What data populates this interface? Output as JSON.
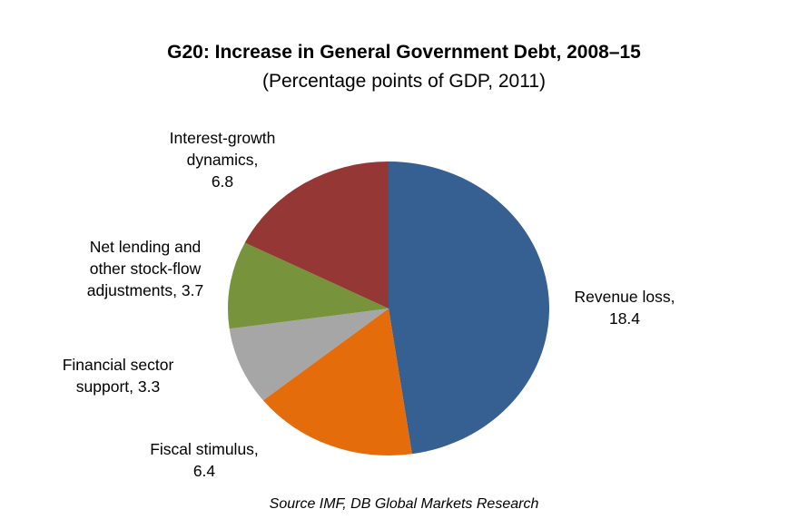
{
  "chart_data": {
    "type": "pie",
    "title": "G20: Increase in General Government Debt, 2008–15",
    "subtitle": "(Percentage points of GDP, 2011)",
    "source": "Source  IMF, DB Global Markets Research",
    "slices": [
      {
        "name": "Revenue loss",
        "value": 18.4,
        "label": "Revenue loss,\n18.4",
        "color": "#376092"
      },
      {
        "name": "Fiscal stimulus",
        "value": 6.4,
        "label": "Fiscal stimulus,\n6.4",
        "color": "#E46C0A"
      },
      {
        "name": "Financial sector support",
        "value": 3.3,
        "label": "Financial sector\nsupport, 3.3",
        "color": "#A6A6A6"
      },
      {
        "name": "Net lending and other stock-flow adjustments",
        "value": 3.7,
        "label": "Net lending and\nother stock-flow\nadjustments, 3.7",
        "color": "#77933C"
      },
      {
        "name": "Interest-growth dynamics",
        "value": 6.8,
        "label": "Interest-growth\ndynamics,\n6.8",
        "color": "#953735"
      }
    ]
  }
}
